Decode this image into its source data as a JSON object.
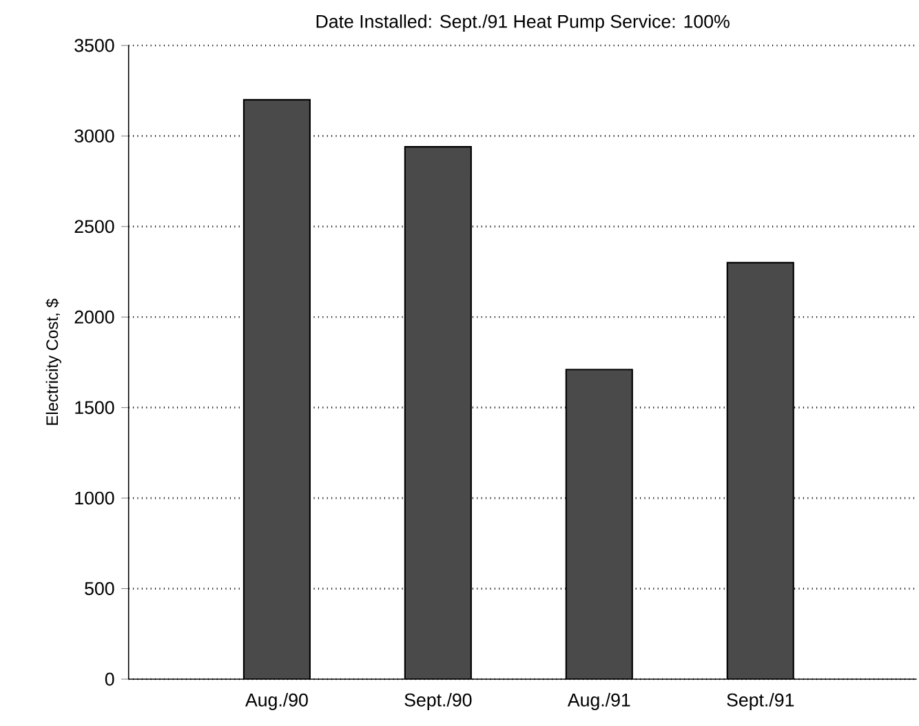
{
  "chart_data": {
    "type": "bar",
    "title": "Date Installed:  Sept./91    Heat Pump Service:  100%",
    "ylabel": "Electricity Cost, $",
    "categories": [
      "Aug./90",
      "Sept./90",
      "Aug./91",
      "Sept./91"
    ],
    "values": [
      3200,
      2940,
      1710,
      2300
    ],
    "color": "#4a4a4a",
    "ylim": [
      0,
      3500
    ],
    "yticks": [
      0,
      500,
      1000,
      1500,
      2000,
      2500,
      3000,
      3500
    ],
    "grid": "y"
  }
}
